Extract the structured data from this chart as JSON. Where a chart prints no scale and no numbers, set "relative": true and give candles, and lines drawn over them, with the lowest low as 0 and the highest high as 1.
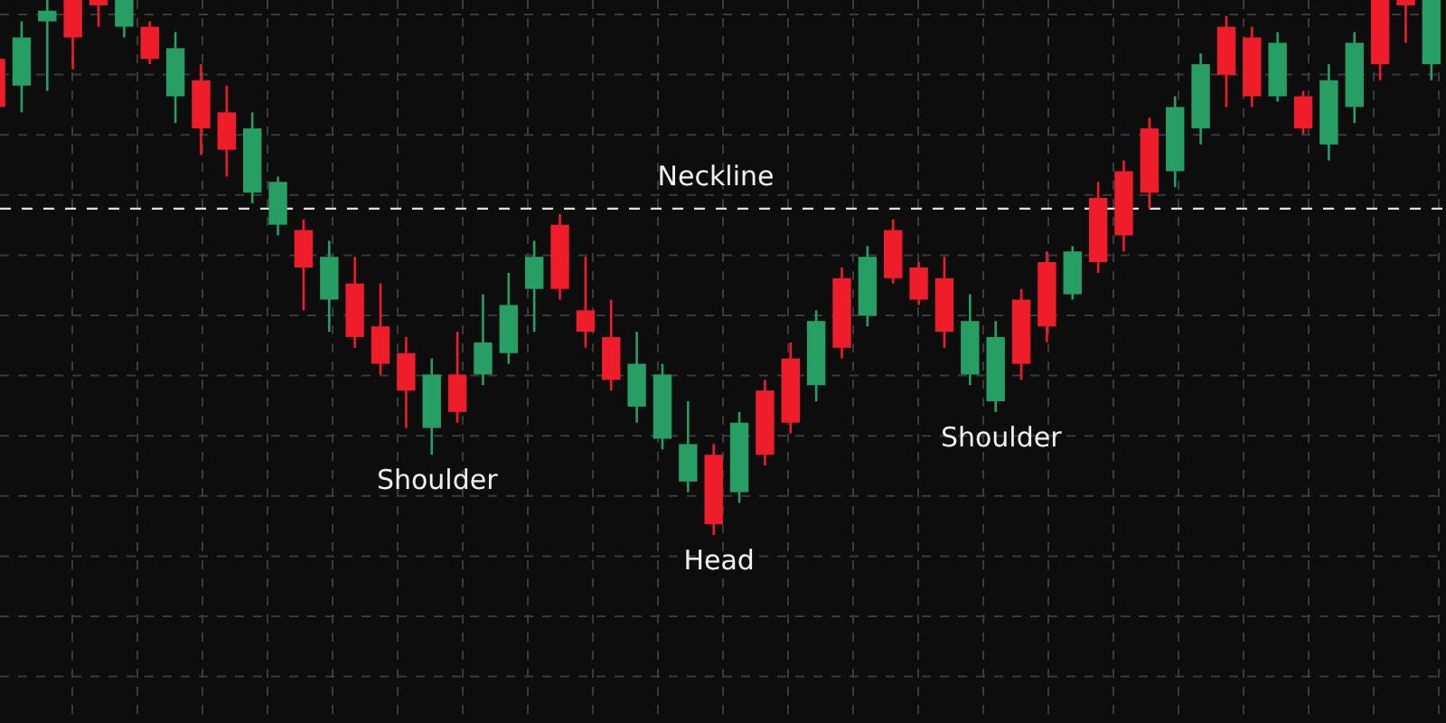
{
  "chart_data": {
    "type": "candlestick",
    "relative": true,
    "grid": true,
    "categories": [
      null,
      null,
      null,
      null,
      null,
      null,
      null,
      null,
      null,
      null,
      null,
      null,
      null,
      null,
      null,
      null,
      null,
      null,
      null,
      null,
      null,
      null,
      null,
      null,
      null,
      null,
      null,
      null,
      null,
      null,
      null,
      null,
      null,
      null,
      null,
      null,
      null,
      null,
      null,
      null,
      null,
      null,
      null,
      null,
      null,
      null,
      null,
      null,
      null,
      null,
      null,
      null,
      null,
      null,
      null,
      null,
      null
    ],
    "ohlc": [
      [
        0.89,
        0.9,
        0.8,
        0.8
      ],
      [
        0.84,
        0.96,
        0.79,
        0.93
      ],
      [
        0.96,
        1.0,
        0.83,
        0.98
      ],
      [
        1.0,
        1.0,
        0.87,
        0.93
      ],
      [
        1.0,
        1.0,
        0.95,
        0.99
      ],
      [
        0.95,
        1.0,
        0.93,
        1.0
      ],
      [
        0.95,
        0.96,
        0.88,
        0.89
      ],
      [
        0.82,
        0.94,
        0.77,
        0.91
      ],
      [
        0.85,
        0.88,
        0.71,
        0.76
      ],
      [
        0.79,
        0.84,
        0.67,
        0.72
      ],
      [
        0.64,
        0.79,
        0.62,
        0.76
      ],
      [
        0.58,
        0.67,
        0.56,
        0.66
      ],
      [
        0.57,
        0.59,
        0.42,
        0.5
      ],
      [
        0.44,
        0.55,
        0.38,
        0.52
      ],
      [
        0.47,
        0.52,
        0.35,
        0.37
      ],
      [
        0.39,
        0.47,
        0.3,
        0.32
      ],
      [
        0.34,
        0.37,
        0.2,
        0.27
      ],
      [
        0.2,
        0.33,
        0.15,
        0.3
      ],
      [
        0.3,
        0.38,
        0.21,
        0.23
      ],
      [
        0.3,
        0.45,
        0.28,
        0.36
      ],
      [
        0.34,
        0.49,
        0.32,
        0.43
      ],
      [
        0.46,
        0.55,
        0.38,
        0.52
      ],
      [
        0.58,
        0.6,
        0.44,
        0.46
      ],
      [
        0.42,
        0.52,
        0.35,
        0.38
      ],
      [
        0.37,
        0.44,
        0.27,
        0.29
      ],
      [
        0.24,
        0.38,
        0.21,
        0.32
      ],
      [
        0.18,
        0.32,
        0.16,
        0.3
      ],
      [
        0.1,
        0.25,
        0.08,
        0.17
      ],
      [
        0.15,
        0.17,
        0.0,
        0.02
      ],
      [
        0.08,
        0.23,
        0.06,
        0.21
      ],
      [
        0.27,
        0.29,
        0.13,
        0.15
      ],
      [
        0.33,
        0.36,
        0.19,
        0.21
      ],
      [
        0.28,
        0.42,
        0.25,
        0.4
      ],
      [
        0.48,
        0.5,
        0.33,
        0.35
      ],
      [
        0.41,
        0.54,
        0.39,
        0.52
      ],
      [
        0.57,
        0.59,
        0.47,
        0.48
      ],
      [
        0.5,
        0.51,
        0.43,
        0.44
      ],
      [
        0.48,
        0.52,
        0.35,
        0.38
      ],
      [
        0.3,
        0.45,
        0.28,
        0.4
      ],
      [
        0.25,
        0.4,
        0.23,
        0.37
      ],
      [
        0.44,
        0.46,
        0.29,
        0.32
      ],
      [
        0.51,
        0.53,
        0.36,
        0.39
      ],
      [
        0.45,
        0.54,
        0.44,
        0.53
      ],
      [
        0.63,
        0.66,
        0.49,
        0.51
      ],
      [
        0.68,
        0.7,
        0.53,
        0.56
      ],
      [
        0.76,
        0.78,
        0.61,
        0.64
      ],
      [
        0.68,
        0.82,
        0.65,
        0.8
      ],
      [
        0.76,
        0.9,
        0.73,
        0.88
      ],
      [
        0.95,
        0.97,
        0.8,
        0.86
      ],
      [
        0.93,
        0.95,
        0.8,
        0.82
      ],
      [
        0.82,
        0.94,
        0.81,
        0.92
      ],
      [
        0.82,
        0.83,
        0.75,
        0.76
      ],
      [
        0.73,
        0.88,
        0.7,
        0.85
      ],
      [
        0.8,
        0.94,
        0.77,
        0.92
      ],
      [
        1.0,
        1.0,
        0.85,
        0.88
      ],
      [
        1.0,
        1.0,
        0.92,
        0.99
      ],
      [
        0.88,
        1.0,
        0.85,
        1.0
      ]
    ],
    "colors": [
      "#ef1c2a",
      "#269e64",
      "#269e64",
      "#ef1c2a",
      "#ef1c2a",
      "#269e64",
      "#ef1c2a",
      "#269e64",
      "#ef1c2a",
      "#ef1c2a",
      "#269e64",
      "#269e64",
      "#ef1c2a",
      "#269e64",
      "#ef1c2a",
      "#ef1c2a",
      "#ef1c2a",
      "#269e64",
      "#ef1c2a",
      "#269e64",
      "#269e64",
      "#269e64",
      "#ef1c2a",
      "#ef1c2a",
      "#ef1c2a",
      "#269e64",
      "#269e64",
      "#269e64",
      "#ef1c2a",
      "#269e64",
      "#ef1c2a",
      "#ef1c2a",
      "#269e64",
      "#ef1c2a",
      "#269e64",
      "#ef1c2a",
      "#ef1c2a",
      "#ef1c2a",
      "#269e64",
      "#269e64",
      "#ef1c2a",
      "#ef1c2a",
      "#269e64",
      "#ef1c2a",
      "#ef1c2a",
      "#ef1c2a",
      "#269e64",
      "#269e64",
      "#ef1c2a",
      "#ef1c2a",
      "#269e64",
      "#ef1c2a",
      "#269e64",
      "#269e64",
      "#ef1c2a",
      "#ef1c2a",
      "#269e64"
    ],
    "ref_lines": [
      {
        "axis": "y",
        "value": 0.61,
        "label": "Neckline",
        "color": "#e0e0e0",
        "line_style": "dashed"
      }
    ],
    "annotations": [
      "Shoulder",
      "Head",
      "Shoulder"
    ]
  }
}
